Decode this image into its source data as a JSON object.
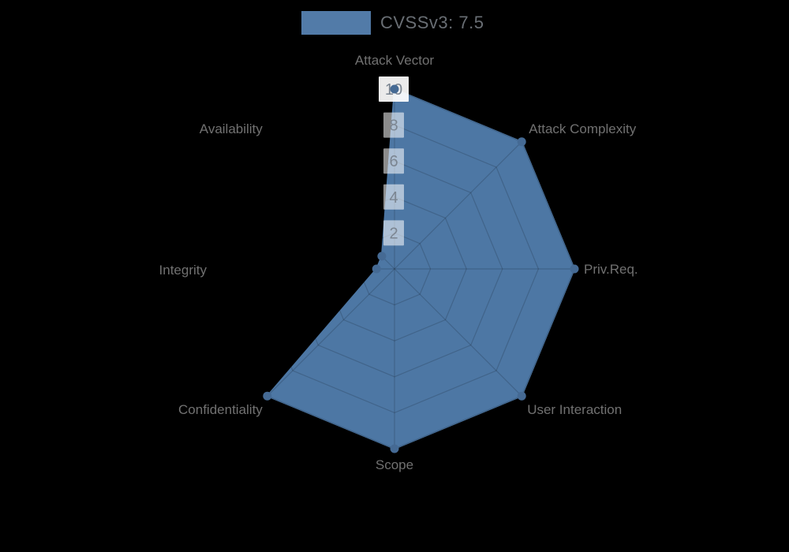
{
  "legend": {
    "label": "CVSSv3: 7.5",
    "swatch_color": "#527ba8"
  },
  "chart_data": {
    "type": "radar",
    "title": "CVSSv3: 7.5",
    "categories": [
      "Attack Vector",
      "Attack Complexity",
      "Priv.Req.",
      "User Interaction",
      "Scope",
      "Confidentiality",
      "Integrity",
      "Availability"
    ],
    "series": [
      {
        "name": "CVSSv3: 7.5",
        "values": [
          10,
          10,
          10,
          10,
          10,
          10,
          1,
          1
        ]
      }
    ],
    "ticks": [
      2,
      4,
      6,
      8,
      10
    ],
    "rmax": 10,
    "grid": true,
    "legend_position": "top-center",
    "colors": {
      "fill": "#4d77a4",
      "marker": "#456a94",
      "grid_line": "rgba(0,0,0,0.16)",
      "tick_box": "rgba(255,255,255,0.55)",
      "tick_box_max": "rgba(255,255,255,0.92)",
      "tick_text": "#7b8591",
      "label_text": "#717171",
      "background": "#000000"
    }
  }
}
